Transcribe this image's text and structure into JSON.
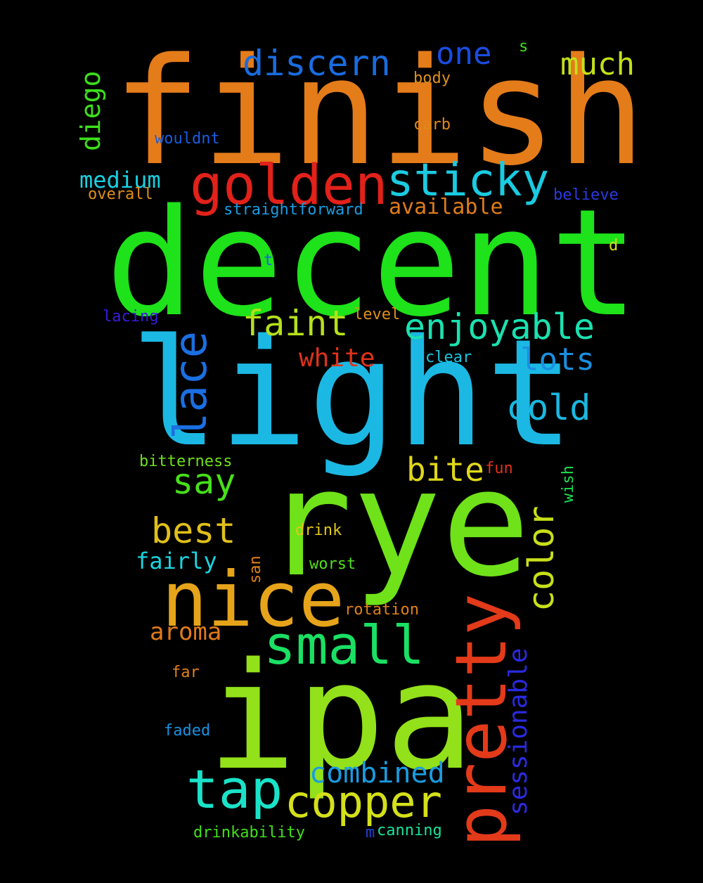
{
  "words": [
    {
      "text": "finish",
      "color": "#e47c1a",
      "vertical": false
    },
    {
      "text": "decent",
      "color": "#1ee21a",
      "vertical": false
    },
    {
      "text": "light",
      "color": "#1cb8e4",
      "vertical": false
    },
    {
      "text": "rye",
      "color": "#6fe219",
      "vertical": false
    },
    {
      "text": "ipa",
      "color": "#93e11a",
      "vertical": false
    },
    {
      "text": "nice",
      "color": "#e6a41a",
      "vertical": false
    },
    {
      "text": "pretty",
      "color": "#e33a1a",
      "vertical": true
    },
    {
      "text": "golden",
      "color": "#e2211a",
      "vertical": false
    },
    {
      "text": "sticky",
      "color": "#1acbe1",
      "vertical": false
    },
    {
      "text": "small",
      "color": "#1ae064",
      "vertical": false
    },
    {
      "text": "lace",
      "color": "#1a6fe2",
      "vertical": true
    },
    {
      "text": "tap",
      "color": "#1ae2c8",
      "vertical": false
    },
    {
      "text": "copper",
      "color": "#d4e01a",
      "vertical": false
    },
    {
      "text": "color",
      "color": "#c8e01a",
      "vertical": true
    },
    {
      "text": "enjoyable",
      "color": "#1ae2b0",
      "vertical": false
    },
    {
      "text": "faint",
      "color": "#b4e01a",
      "vertical": false
    },
    {
      "text": "discern",
      "color": "#1a6ce0",
      "vertical": false
    },
    {
      "text": "cold",
      "color": "#1ab8e0",
      "vertical": false
    },
    {
      "text": "best",
      "color": "#e0c01a",
      "vertical": false
    },
    {
      "text": "combined",
      "color": "#1a9ce0",
      "vertical": false
    },
    {
      "text": "say",
      "color": "#48e01a",
      "vertical": false
    },
    {
      "text": "bite",
      "color": "#e0d81a",
      "vertical": false
    },
    {
      "text": "lots",
      "color": "#1a90e0",
      "vertical": false
    },
    {
      "text": "one",
      "color": "#1a4ce0",
      "vertical": false
    },
    {
      "text": "much",
      "color": "#c4e01a",
      "vertical": false
    },
    {
      "text": "diego",
      "color": "#3ce01a",
      "vertical": true
    },
    {
      "text": "sessionable",
      "color": "#2a2ae0",
      "vertical": true
    },
    {
      "text": "white",
      "color": "#e0321a",
      "vertical": false
    },
    {
      "text": "aroma",
      "color": "#e07a1a",
      "vertical": false
    },
    {
      "text": "medium",
      "color": "#1ad0e0",
      "vertical": false
    },
    {
      "text": "available",
      "color": "#e07c1a",
      "vertical": false
    },
    {
      "text": "fairly",
      "color": "#1ad4e0",
      "vertical": false
    },
    {
      "text": "straightforward",
      "color": "#1a9ce0",
      "vertical": false
    },
    {
      "text": "overall",
      "color": "#e0901a",
      "vertical": false
    },
    {
      "text": "believe",
      "color": "#2a3ae0",
      "vertical": false
    },
    {
      "text": "wouldnt",
      "color": "#1a5ce0",
      "vertical": false
    },
    {
      "text": "body",
      "color": "#e0901a",
      "vertical": false
    },
    {
      "text": "carb",
      "color": "#e08a1a",
      "vertical": false
    },
    {
      "text": "lacing",
      "color": "#3a1ae0",
      "vertical": false
    },
    {
      "text": "level",
      "color": "#e0901a",
      "vertical": false
    },
    {
      "text": "clear",
      "color": "#1ac4e0",
      "vertical": false
    },
    {
      "text": "bitterness",
      "color": "#6ce01a",
      "vertical": false
    },
    {
      "text": "fun",
      "color": "#e0321a",
      "vertical": false
    },
    {
      "text": "wish",
      "color": "#1ae050",
      "vertical": true
    },
    {
      "text": "drink",
      "color": "#e0c81a",
      "vertical": false
    },
    {
      "text": "worst",
      "color": "#50e01a",
      "vertical": false
    },
    {
      "text": "san",
      "color": "#e0801a",
      "vertical": true
    },
    {
      "text": "rotation",
      "color": "#e0801a",
      "vertical": false
    },
    {
      "text": "far",
      "color": "#e0801a",
      "vertical": false
    },
    {
      "text": "faded",
      "color": "#1a90e0",
      "vertical": false
    },
    {
      "text": "drinkability",
      "color": "#40e01a",
      "vertical": false
    },
    {
      "text": "canning",
      "color": "#1ae0a0",
      "vertical": false
    },
    {
      "text": "m",
      "color": "#1a40e0",
      "vertical": false
    },
    {
      "text": "s",
      "color": "#40e01a",
      "vertical": false
    },
    {
      "text": "d",
      "color": "#d4e01a",
      "vertical": false
    },
    {
      "text": "t",
      "color": "#1a60e0",
      "vertical": false
    }
  ]
}
